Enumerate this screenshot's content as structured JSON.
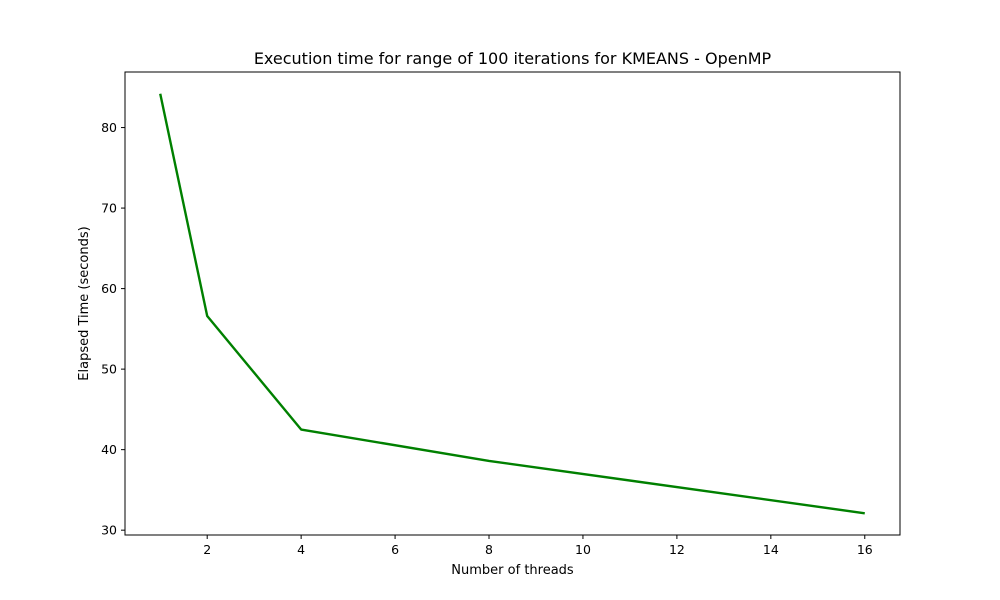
{
  "chart_data": {
    "type": "line",
    "title": "Execution time for range of 100 iterations for KMEANS - OpenMP",
    "xlabel": "Number of threads",
    "ylabel": "Elapsed Time (seconds)",
    "xlim": [
      0.25,
      16.75
    ],
    "ylim": [
      29.4,
      86.9
    ],
    "xticks": [
      2,
      4,
      6,
      8,
      10,
      12,
      14,
      16
    ],
    "yticks": [
      30,
      40,
      50,
      60,
      70,
      80
    ],
    "grid": false,
    "series": [
      {
        "color": "#008000",
        "x": [
          1,
          2,
          4,
          8,
          16
        ],
        "y": [
          84.2,
          56.6,
          42.5,
          38.6,
          32.1
        ]
      }
    ]
  }
}
